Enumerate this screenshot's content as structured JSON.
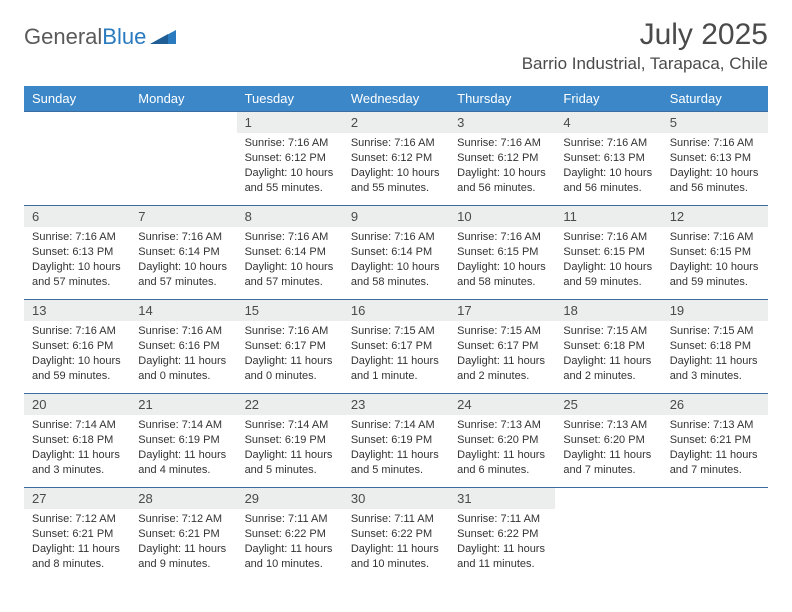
{
  "logo": {
    "text1": "General",
    "text2": "Blue"
  },
  "title": "July 2025",
  "location": "Barrio Industrial, Tarapaca, Chile",
  "colors": {
    "header_bg": "#3b87c8",
    "header_text": "#ffffff",
    "daynum_bg": "#eceded",
    "border": "#3b6e9e",
    "text": "#333333",
    "title_text": "#4a4a4a",
    "logo_gray": "#5a5a5a",
    "logo_blue": "#2a7abf"
  },
  "fonts": {
    "title_size": 30,
    "location_size": 17,
    "header_size": 13,
    "daynum_size": 13,
    "body_size": 11
  },
  "weekdays": [
    "Sunday",
    "Monday",
    "Tuesday",
    "Wednesday",
    "Thursday",
    "Friday",
    "Saturday"
  ],
  "weeks": [
    [
      null,
      null,
      {
        "n": "1",
        "sr": "7:16 AM",
        "ss": "6:12 PM",
        "dl": "10 hours and 55 minutes."
      },
      {
        "n": "2",
        "sr": "7:16 AM",
        "ss": "6:12 PM",
        "dl": "10 hours and 55 minutes."
      },
      {
        "n": "3",
        "sr": "7:16 AM",
        "ss": "6:12 PM",
        "dl": "10 hours and 56 minutes."
      },
      {
        "n": "4",
        "sr": "7:16 AM",
        "ss": "6:13 PM",
        "dl": "10 hours and 56 minutes."
      },
      {
        "n": "5",
        "sr": "7:16 AM",
        "ss": "6:13 PM",
        "dl": "10 hours and 56 minutes."
      }
    ],
    [
      {
        "n": "6",
        "sr": "7:16 AM",
        "ss": "6:13 PM",
        "dl": "10 hours and 57 minutes."
      },
      {
        "n": "7",
        "sr": "7:16 AM",
        "ss": "6:14 PM",
        "dl": "10 hours and 57 minutes."
      },
      {
        "n": "8",
        "sr": "7:16 AM",
        "ss": "6:14 PM",
        "dl": "10 hours and 57 minutes."
      },
      {
        "n": "9",
        "sr": "7:16 AM",
        "ss": "6:14 PM",
        "dl": "10 hours and 58 minutes."
      },
      {
        "n": "10",
        "sr": "7:16 AM",
        "ss": "6:15 PM",
        "dl": "10 hours and 58 minutes."
      },
      {
        "n": "11",
        "sr": "7:16 AM",
        "ss": "6:15 PM",
        "dl": "10 hours and 59 minutes."
      },
      {
        "n": "12",
        "sr": "7:16 AM",
        "ss": "6:15 PM",
        "dl": "10 hours and 59 minutes."
      }
    ],
    [
      {
        "n": "13",
        "sr": "7:16 AM",
        "ss": "6:16 PM",
        "dl": "10 hours and 59 minutes."
      },
      {
        "n": "14",
        "sr": "7:16 AM",
        "ss": "6:16 PM",
        "dl": "11 hours and 0 minutes."
      },
      {
        "n": "15",
        "sr": "7:16 AM",
        "ss": "6:17 PM",
        "dl": "11 hours and 0 minutes."
      },
      {
        "n": "16",
        "sr": "7:15 AM",
        "ss": "6:17 PM",
        "dl": "11 hours and 1 minute."
      },
      {
        "n": "17",
        "sr": "7:15 AM",
        "ss": "6:17 PM",
        "dl": "11 hours and 2 minutes."
      },
      {
        "n": "18",
        "sr": "7:15 AM",
        "ss": "6:18 PM",
        "dl": "11 hours and 2 minutes."
      },
      {
        "n": "19",
        "sr": "7:15 AM",
        "ss": "6:18 PM",
        "dl": "11 hours and 3 minutes."
      }
    ],
    [
      {
        "n": "20",
        "sr": "7:14 AM",
        "ss": "6:18 PM",
        "dl": "11 hours and 3 minutes."
      },
      {
        "n": "21",
        "sr": "7:14 AM",
        "ss": "6:19 PM",
        "dl": "11 hours and 4 minutes."
      },
      {
        "n": "22",
        "sr": "7:14 AM",
        "ss": "6:19 PM",
        "dl": "11 hours and 5 minutes."
      },
      {
        "n": "23",
        "sr": "7:14 AM",
        "ss": "6:19 PM",
        "dl": "11 hours and 5 minutes."
      },
      {
        "n": "24",
        "sr": "7:13 AM",
        "ss": "6:20 PM",
        "dl": "11 hours and 6 minutes."
      },
      {
        "n": "25",
        "sr": "7:13 AM",
        "ss": "6:20 PM",
        "dl": "11 hours and 7 minutes."
      },
      {
        "n": "26",
        "sr": "7:13 AM",
        "ss": "6:21 PM",
        "dl": "11 hours and 7 minutes."
      }
    ],
    [
      {
        "n": "27",
        "sr": "7:12 AM",
        "ss": "6:21 PM",
        "dl": "11 hours and 8 minutes."
      },
      {
        "n": "28",
        "sr": "7:12 AM",
        "ss": "6:21 PM",
        "dl": "11 hours and 9 minutes."
      },
      {
        "n": "29",
        "sr": "7:11 AM",
        "ss": "6:22 PM",
        "dl": "11 hours and 10 minutes."
      },
      {
        "n": "30",
        "sr": "7:11 AM",
        "ss": "6:22 PM",
        "dl": "11 hours and 10 minutes."
      },
      {
        "n": "31",
        "sr": "7:11 AM",
        "ss": "6:22 PM",
        "dl": "11 hours and 11 minutes."
      },
      null,
      null
    ]
  ]
}
